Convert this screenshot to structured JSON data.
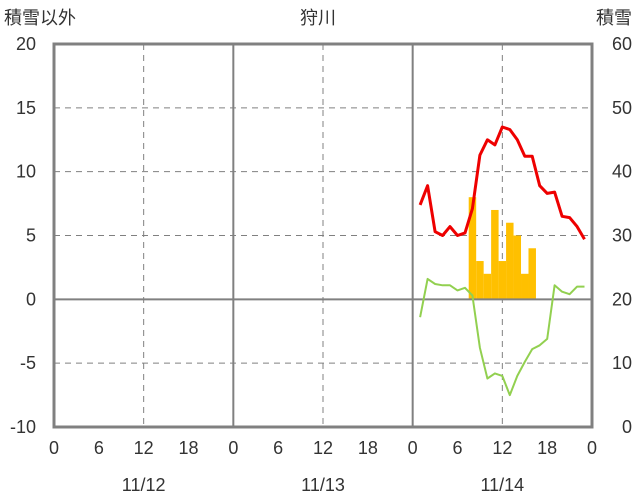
{
  "chart_data": {
    "type": "bar+line",
    "title": "狩川",
    "left_axis_label": "積雪以外",
    "right_axis_label": "積雪",
    "left_ylim": [
      -10,
      20
    ],
    "left_ticks": [
      "20",
      "15",
      "10",
      "5",
      "0",
      "-5",
      "-10"
    ],
    "right_ylim": [
      0,
      60
    ],
    "right_ticks": [
      "60",
      "50",
      "40",
      "30",
      "20",
      "10",
      "0"
    ],
    "x_range_hours": [
      0,
      72
    ],
    "x_tick_labels": [
      "0",
      "6",
      "12",
      "18",
      "0",
      "6",
      "12",
      "18",
      "0",
      "6",
      "12",
      "18",
      "0"
    ],
    "date_labels": [
      "11/12",
      "11/13",
      "11/14"
    ],
    "grid": true,
    "colors": {
      "bar": "#ffc000",
      "red_line": "#ee0000",
      "green_line": "#92d050",
      "purple_line": "#7030a0",
      "zero_line": "#808080",
      "frame": "#808080"
    },
    "series": [
      {
        "type": "bar",
        "axis": "left",
        "x": [
          56,
          57,
          58,
          59,
          60,
          61,
          62,
          63,
          64,
          65,
          66,
          67
        ],
        "values": [
          8,
          3,
          2,
          7,
          3,
          6,
          5,
          2,
          4,
          0,
          0,
          0
        ]
      },
      {
        "type": "line",
        "axis": "left",
        "color_key": "red_line",
        "x": [
          49,
          50,
          51,
          52,
          53,
          54,
          55,
          56,
          57,
          58,
          59,
          60,
          61,
          62,
          63,
          64,
          65,
          66,
          67,
          68,
          69,
          70,
          71
        ],
        "values": [
          7.4,
          8.9,
          5.3,
          5,
          5.7,
          5,
          5.2,
          7.1,
          11.3,
          12.5,
          12.1,
          13.5,
          13.3,
          12.5,
          11.2,
          11.2,
          8.9,
          8.3,
          8.4,
          6.5,
          6.4,
          5.7,
          4.7
        ]
      },
      {
        "type": "line",
        "axis": "left",
        "color_key": "green_line",
        "x": [
          49,
          50,
          51,
          52,
          53,
          54,
          55,
          56,
          57,
          58,
          59,
          60,
          61,
          62,
          63,
          64,
          65,
          66,
          67,
          68,
          69,
          70,
          71
        ],
        "values": [
          -1.4,
          1.6,
          1.2,
          1.1,
          1.1,
          0.7,
          0.9,
          0.3,
          -3.8,
          -6.2,
          -5.8,
          -6.0,
          -7.5,
          -6.0,
          -4.9,
          -3.9,
          -3.6,
          -3.1,
          1.1,
          0.6,
          0.4,
          1.0,
          1.0
        ]
      },
      {
        "type": "line",
        "axis": "right",
        "color_key": "purple_line",
        "x": [
          49,
          50,
          51,
          52,
          53,
          54,
          55,
          56,
          57,
          58,
          59,
          60,
          61,
          62,
          63,
          64,
          65,
          66,
          67,
          68,
          69,
          70,
          71
        ],
        "values": [
          0,
          0,
          0,
          0,
          0,
          0,
          0,
          0,
          0,
          0,
          0,
          0,
          0,
          0,
          0,
          0,
          0,
          0,
          0,
          0,
          0,
          0,
          0
        ]
      }
    ]
  }
}
